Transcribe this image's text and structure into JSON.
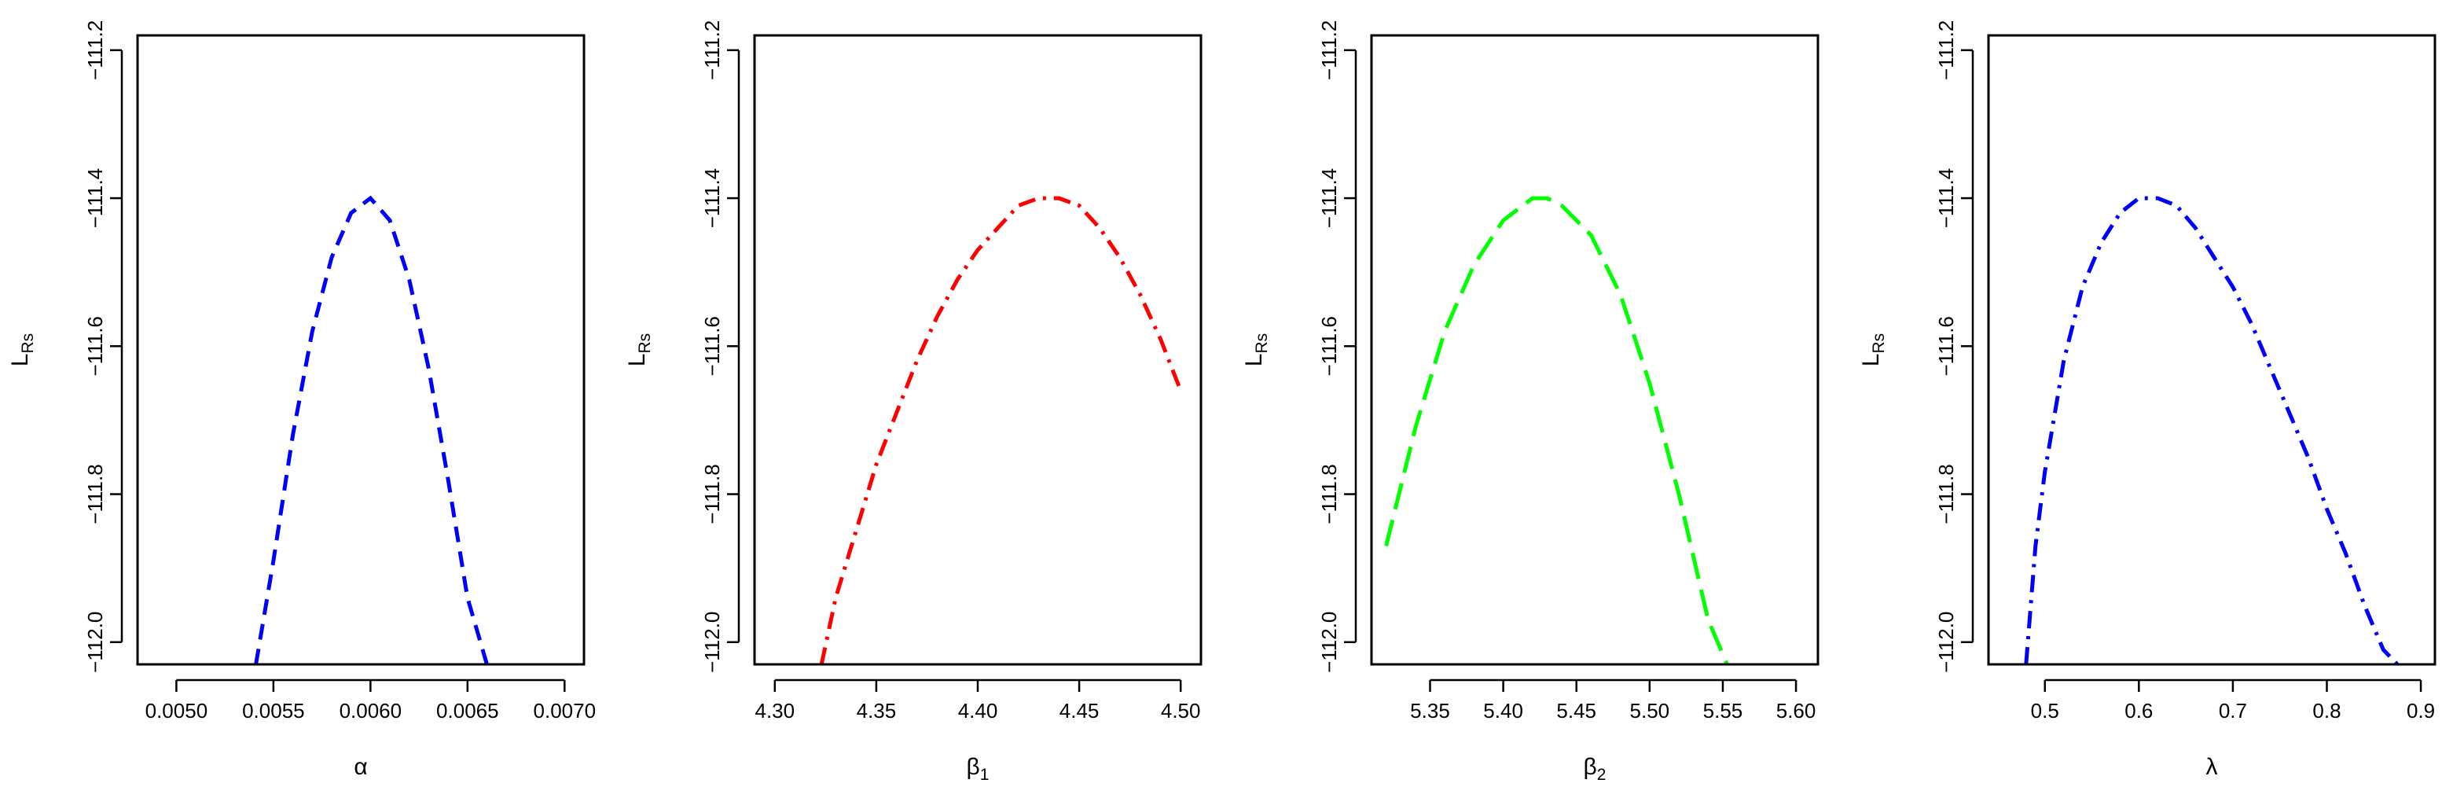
{
  "chart_data": [
    {
      "type": "line",
      "xlabel": "α",
      "xlabel_sub": "",
      "ylabel": "L",
      "ylabel_sub": "Rs",
      "xlim": [
        0.0048,
        0.0071
      ],
      "ylim": [
        -112.03,
        -111.18
      ],
      "xticks": [
        0.005,
        0.0055,
        0.006,
        0.0065,
        0.007
      ],
      "xtick_labels": [
        "0.0050",
        "0.0055",
        "0.0060",
        "0.0065",
        "0.0070"
      ],
      "yticks": [
        -111.2,
        -111.4,
        -111.6,
        -111.8,
        -112.0
      ],
      "ytick_labels": [
        "−111.2",
        "−111.4",
        "−111.6",
        "−111.8",
        "−112.0"
      ],
      "series": [
        {
          "color": "#0000ff",
          "dash": "dashed",
          "x": [
            0.00541,
            0.0055,
            0.0056,
            0.0057,
            0.0058,
            0.0059,
            0.006,
            0.0061,
            0.0062,
            0.0063,
            0.0064,
            0.0065,
            0.0066
          ],
          "y": [
            -112.03,
            -111.89,
            -111.72,
            -111.58,
            -111.48,
            -111.42,
            -111.4,
            -111.43,
            -111.51,
            -111.63,
            -111.78,
            -111.94,
            -112.03
          ]
        }
      ]
    },
    {
      "type": "line",
      "xlabel": "β",
      "xlabel_sub": "1",
      "ylabel": "L",
      "ylabel_sub": "Rs",
      "xlim": [
        4.29,
        4.51
      ],
      "ylim": [
        -112.03,
        -111.18
      ],
      "xticks": [
        4.3,
        4.35,
        4.4,
        4.45,
        4.5
      ],
      "xtick_labels": [
        "4.30",
        "4.35",
        "4.40",
        "4.45",
        "4.50"
      ],
      "yticks": [
        -111.2,
        -111.4,
        -111.6,
        -111.8,
        -112.0
      ],
      "ytick_labels": [
        "−111.2",
        "−111.4",
        "−111.6",
        "−111.8",
        "−112.0"
      ],
      "series": [
        {
          "color": "#ff0000",
          "dash": "dotdash",
          "x": [
            4.323,
            4.33,
            4.34,
            4.35,
            4.36,
            4.37,
            4.38,
            4.39,
            4.4,
            4.41,
            4.42,
            4.43,
            4.44,
            4.45,
            4.46,
            4.47,
            4.48,
            4.49,
            4.5
          ],
          "y": [
            -112.03,
            -111.94,
            -111.85,
            -111.76,
            -111.69,
            -111.62,
            -111.56,
            -111.51,
            -111.47,
            -111.44,
            -111.41,
            -111.4,
            -111.4,
            -111.41,
            -111.44,
            -111.48,
            -111.53,
            -111.59,
            -111.66
          ]
        }
      ]
    },
    {
      "type": "line",
      "xlabel": "β",
      "xlabel_sub": "2",
      "ylabel": "L",
      "ylabel_sub": "Rs",
      "xlim": [
        5.31,
        5.615
      ],
      "ylim": [
        -112.03,
        -111.18
      ],
      "xticks": [
        5.35,
        5.4,
        5.45,
        5.5,
        5.55,
        5.6
      ],
      "xtick_labels": [
        "5.35",
        "5.40",
        "5.45",
        "5.50",
        "5.55",
        "5.60"
      ],
      "yticks": [
        -111.2,
        -111.4,
        -111.6,
        -111.8,
        -112.0
      ],
      "ytick_labels": [
        "−111.2",
        "−111.4",
        "−111.6",
        "−111.8",
        "−112.0"
      ],
      "series": [
        {
          "color": "#00ff00",
          "dash": "longdash",
          "x": [
            5.32,
            5.34,
            5.36,
            5.38,
            5.4,
            5.42,
            5.43,
            5.44,
            5.46,
            5.48,
            5.5,
            5.52,
            5.54,
            5.553
          ],
          "y": [
            -111.87,
            -111.71,
            -111.58,
            -111.49,
            -111.43,
            -111.4,
            -111.4,
            -111.41,
            -111.45,
            -111.53,
            -111.65,
            -111.8,
            -111.97,
            -112.03
          ]
        }
      ]
    },
    {
      "type": "line",
      "xlabel": "λ",
      "xlabel_sub": "",
      "ylabel": "L",
      "ylabel_sub": "Rs",
      "xlim": [
        0.44,
        0.915
      ],
      "ylim": [
        -112.03,
        -111.18
      ],
      "xticks": [
        0.5,
        0.6,
        0.7,
        0.8,
        0.9
      ],
      "xtick_labels": [
        "0.5",
        "0.6",
        "0.7",
        "0.8",
        "0.9"
      ],
      "yticks": [
        -111.2,
        -111.4,
        -111.6,
        -111.8,
        -112.0
      ],
      "ytick_labels": [
        "−111.2",
        "−111.4",
        "−111.6",
        "−111.8",
        "−112.0"
      ],
      "series": [
        {
          "color": "#0000ff",
          "dash": "dotdash",
          "x": [
            0.48,
            0.49,
            0.5,
            0.52,
            0.54,
            0.56,
            0.58,
            0.6,
            0.62,
            0.64,
            0.66,
            0.68,
            0.7,
            0.72,
            0.74,
            0.76,
            0.78,
            0.8,
            0.82,
            0.84,
            0.86,
            0.875
          ],
          "y": [
            -112.03,
            -111.87,
            -111.77,
            -111.62,
            -111.52,
            -111.46,
            -111.42,
            -111.4,
            -111.4,
            -111.41,
            -111.44,
            -111.48,
            -111.52,
            -111.57,
            -111.63,
            -111.69,
            -111.75,
            -111.82,
            -111.88,
            -111.95,
            -112.01,
            -112.03
          ]
        }
      ]
    }
  ]
}
